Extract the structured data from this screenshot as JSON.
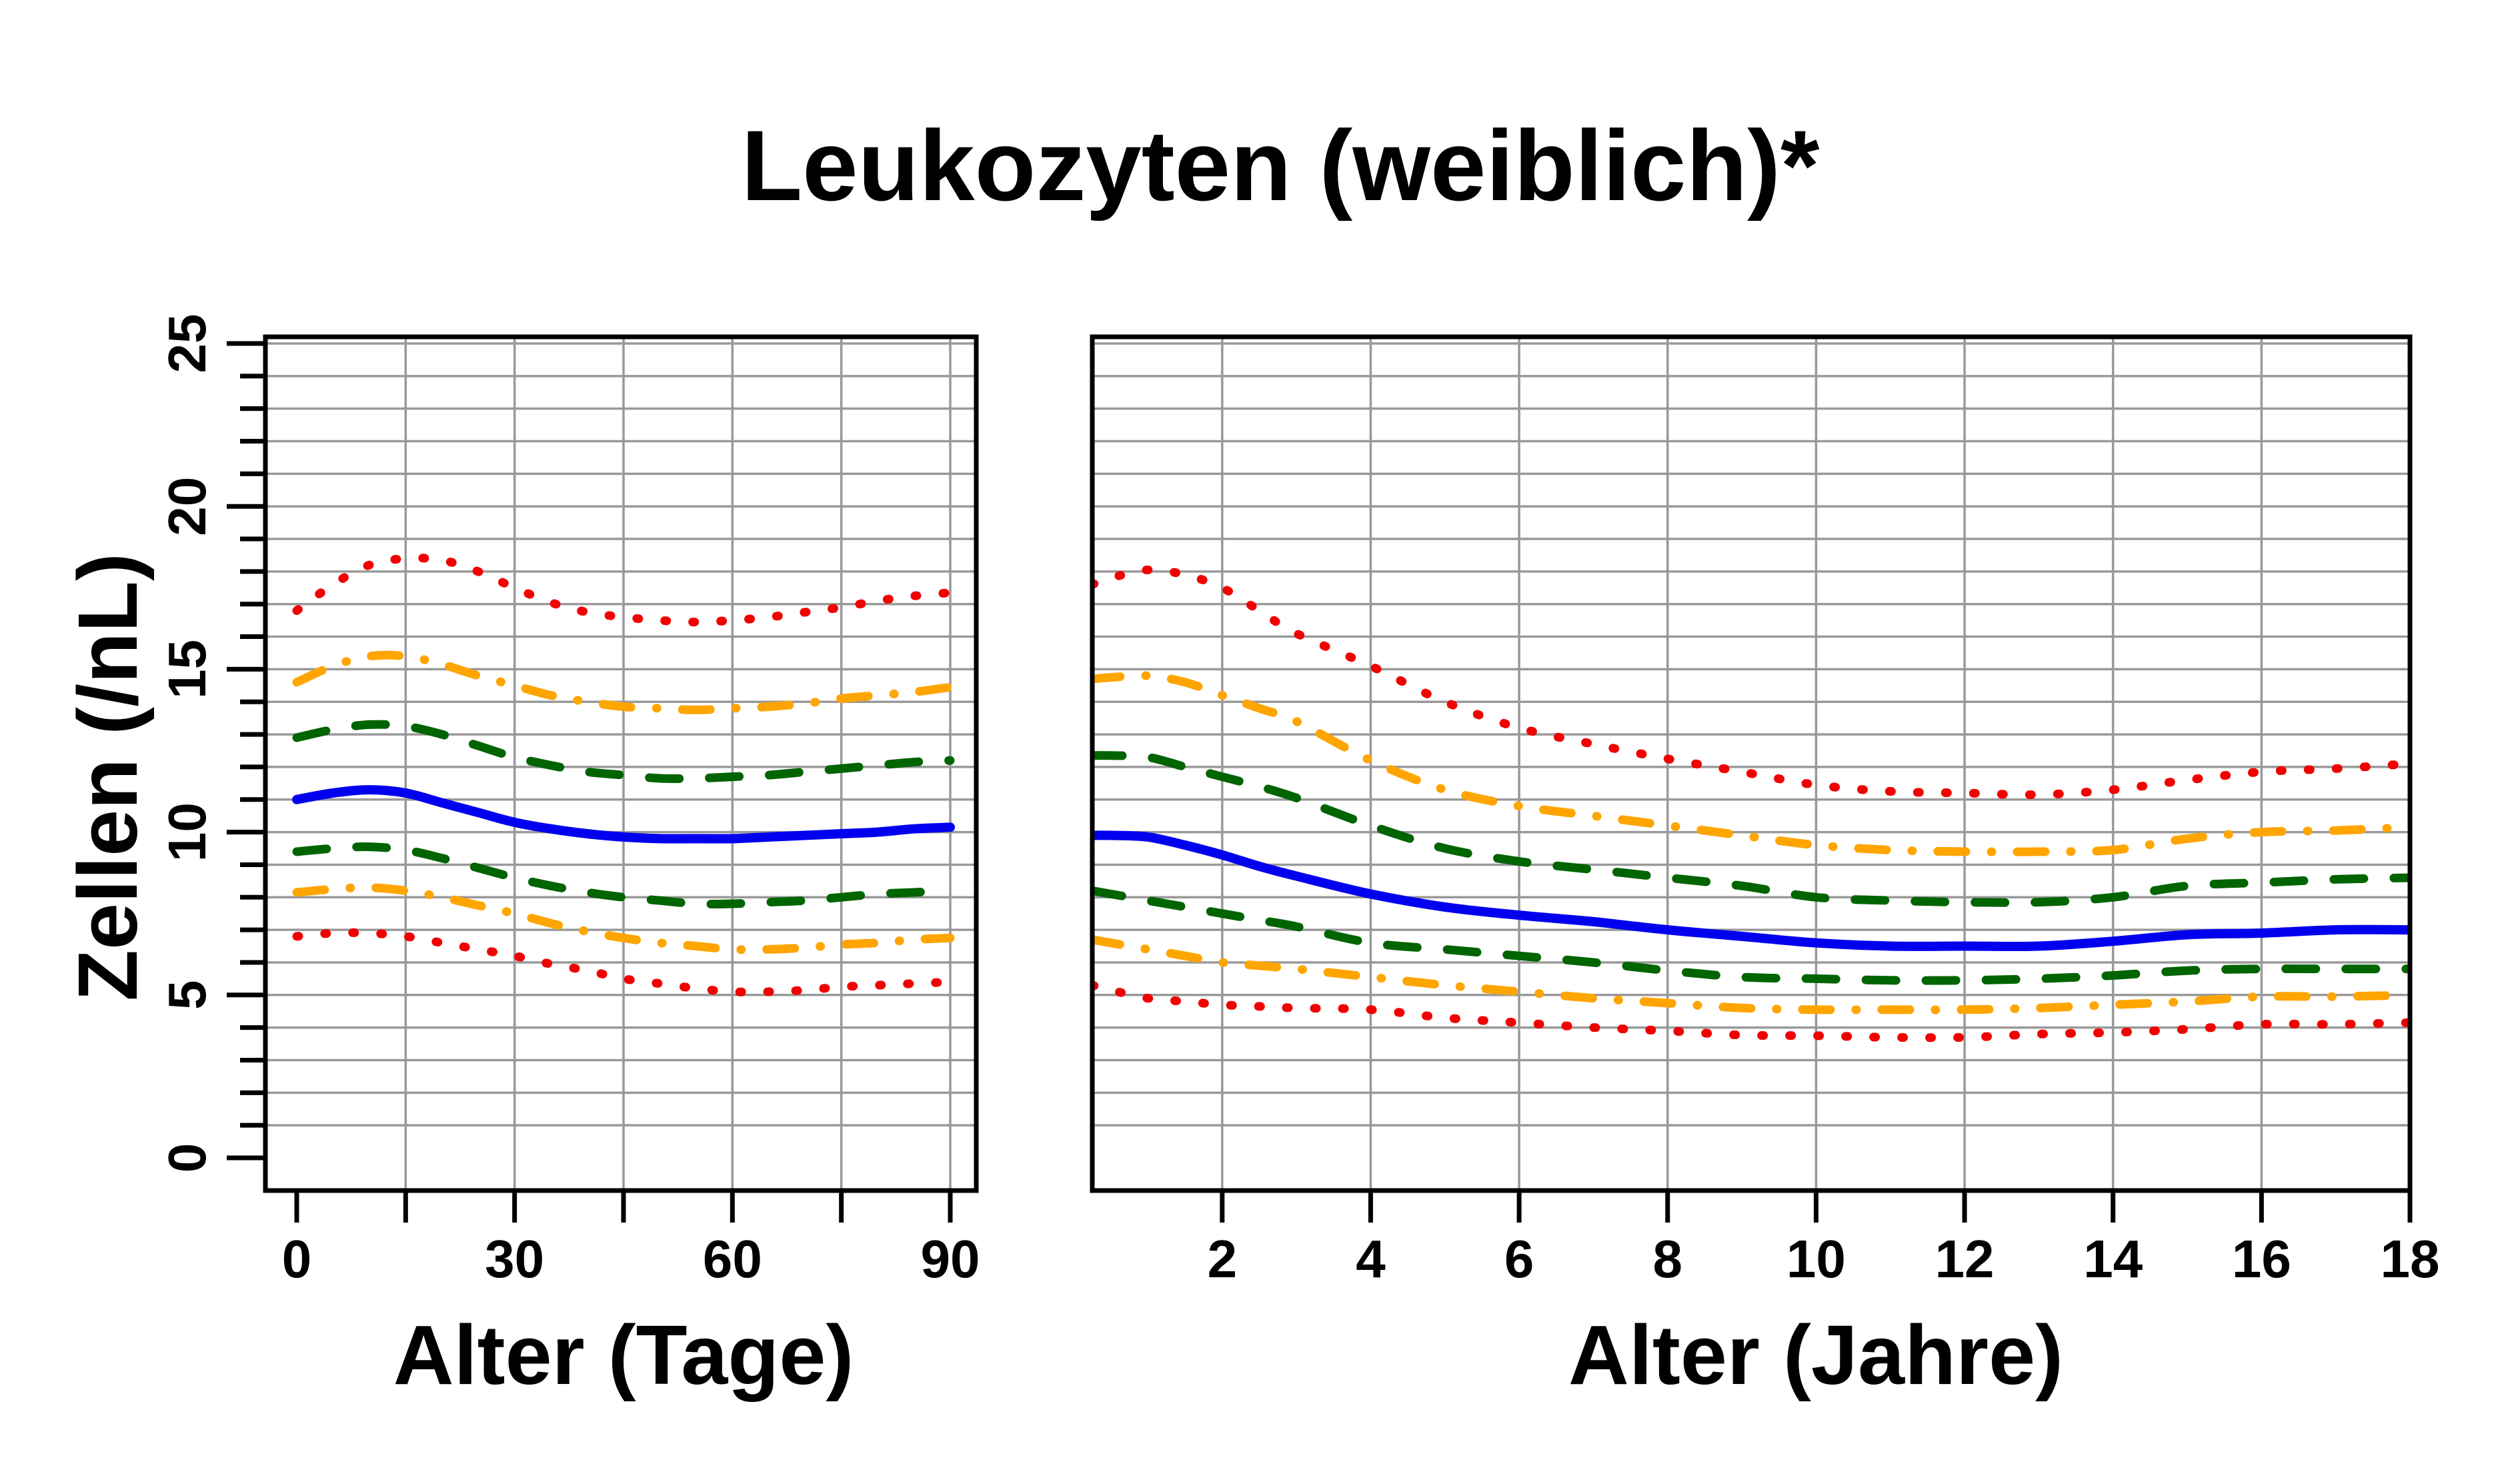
{
  "header": {
    "title": "Leukozyten (weiblich)*"
  },
  "axes": {
    "y_label": "Zellen (/nL)",
    "x_label_left": "Alter (Tage)",
    "x_label_right": "Alter (Jahre)",
    "y_ticks": [
      0,
      5,
      10,
      15,
      20,
      25
    ],
    "y_minor_step": 1,
    "grid_color": "#999999",
    "axis_color": "#000000"
  },
  "chart_data": [
    {
      "type": "line",
      "panel": "left",
      "title": "",
      "xlabel": "Alter (Tage)",
      "ylabel": "Zellen (/nL)",
      "xlim": [
        0,
        90
      ],
      "ylim": [
        0,
        25
      ],
      "grid": true,
      "x_ticks": [
        0,
        15,
        30,
        45,
        60,
        75,
        90
      ],
      "x_tick_labels": [
        "0",
        "",
        "30",
        "",
        "60",
        "",
        "90"
      ],
      "grid_x": [
        15,
        30,
        45,
        60,
        75,
        90
      ],
      "x": [
        0,
        5,
        10,
        15,
        20,
        25,
        30,
        35,
        40,
        45,
        50,
        55,
        60,
        65,
        70,
        75,
        80,
        85,
        90
      ],
      "series": [
        {
          "name": "red-upper",
          "color": "#f10000",
          "pattern": "dotted",
          "width": 13,
          "values": [
            16.8,
            17.6,
            18.2,
            18.4,
            18.35,
            18.0,
            17.5,
            17.05,
            16.75,
            16.6,
            16.5,
            16.45,
            16.5,
            16.6,
            16.75,
            16.9,
            17.1,
            17.25,
            17.35
          ]
        },
        {
          "name": "orange-upper",
          "color": "#ffa500",
          "pattern": "dashdot",
          "width": 13,
          "values": [
            14.6,
            15.1,
            15.4,
            15.4,
            15.15,
            14.8,
            14.5,
            14.2,
            14.0,
            13.85,
            13.8,
            13.75,
            13.8,
            13.85,
            13.95,
            14.1,
            14.2,
            14.3,
            14.45
          ]
        },
        {
          "name": "green-upper",
          "color": "#006400",
          "pattern": "longdash",
          "width": 13,
          "values": [
            12.9,
            13.15,
            13.3,
            13.25,
            13.0,
            12.65,
            12.3,
            12.05,
            11.85,
            11.75,
            11.65,
            11.65,
            11.7,
            11.75,
            11.85,
            11.95,
            12.05,
            12.15,
            12.2
          ]
        },
        {
          "name": "blue-median",
          "color": "#0000ee",
          "pattern": "solid",
          "width": 14,
          "values": [
            11.0,
            11.2,
            11.3,
            11.2,
            10.9,
            10.6,
            10.3,
            10.1,
            9.95,
            9.85,
            9.8,
            9.8,
            9.8,
            9.85,
            9.9,
            9.95,
            10.0,
            10.1,
            10.15
          ]
        },
        {
          "name": "green-lower",
          "color": "#006400",
          "pattern": "longdash",
          "width": 13,
          "values": [
            9.4,
            9.5,
            9.55,
            9.45,
            9.2,
            8.9,
            8.6,
            8.35,
            8.15,
            8.0,
            7.9,
            7.8,
            7.8,
            7.85,
            7.9,
            8.0,
            8.1,
            8.15,
            8.2
          ]
        },
        {
          "name": "orange-lower",
          "color": "#ffa500",
          "pattern": "dashdot",
          "width": 13,
          "values": [
            8.15,
            8.25,
            8.3,
            8.2,
            8.0,
            7.75,
            7.5,
            7.2,
            6.95,
            6.75,
            6.6,
            6.5,
            6.4,
            6.4,
            6.45,
            6.55,
            6.6,
            6.7,
            6.75
          ]
        },
        {
          "name": "red-lower",
          "color": "#f10000",
          "pattern": "dotted",
          "width": 13,
          "values": [
            6.8,
            6.9,
            6.9,
            6.8,
            6.6,
            6.4,
            6.2,
            5.95,
            5.75,
            5.5,
            5.35,
            5.2,
            5.1,
            5.1,
            5.15,
            5.25,
            5.3,
            5.35,
            5.4
          ]
        }
      ]
    },
    {
      "type": "line",
      "panel": "right",
      "title": "",
      "xlabel": "Alter (Jahre)",
      "ylabel": "Zellen (/nL)",
      "xlim": [
        0.25,
        18
      ],
      "ylim": [
        0,
        25
      ],
      "grid": true,
      "x_ticks": [
        2,
        4,
        6,
        8,
        10,
        12,
        14,
        16,
        18
      ],
      "x_tick_labels": [
        "2",
        "4",
        "6",
        "8",
        "10",
        "12",
        "14",
        "16",
        "18"
      ],
      "grid_x": [
        2,
        4,
        6,
        8,
        10,
        12,
        14,
        16,
        18
      ],
      "x": [
        0.25,
        0.5,
        1,
        1.5,
        2,
        2.5,
        3,
        4,
        5,
        6,
        7,
        8,
        9,
        10,
        11,
        12,
        13,
        14,
        15,
        16,
        17,
        18
      ],
      "series": [
        {
          "name": "red-upper",
          "color": "#f10000",
          "pattern": "dotted",
          "width": 13,
          "values": [
            17.6,
            17.8,
            18.05,
            17.9,
            17.5,
            16.8,
            16.1,
            15.1,
            14.0,
            13.2,
            12.7,
            12.25,
            11.85,
            11.45,
            11.25,
            11.2,
            11.15,
            11.3,
            11.6,
            11.85,
            11.95,
            12.1
          ]
        },
        {
          "name": "orange-upper",
          "color": "#ffa500",
          "pattern": "dashdot",
          "width": 13,
          "values": [
            14.7,
            14.75,
            14.8,
            14.6,
            14.2,
            13.8,
            13.4,
            12.2,
            11.3,
            10.8,
            10.5,
            10.2,
            9.9,
            9.6,
            9.45,
            9.4,
            9.4,
            9.45,
            9.8,
            10.0,
            10.05,
            10.15
          ]
        },
        {
          "name": "green-upper",
          "color": "#006400",
          "pattern": "longdash",
          "width": 13,
          "values": [
            12.35,
            12.35,
            12.3,
            12.0,
            11.7,
            11.4,
            11.05,
            10.2,
            9.5,
            9.1,
            8.85,
            8.6,
            8.35,
            8.0,
            7.9,
            7.85,
            7.85,
            8.0,
            8.35,
            8.45,
            8.55,
            8.6
          ]
        },
        {
          "name": "blue-median",
          "color": "#0000ee",
          "pattern": "solid",
          "width": 14,
          "values": [
            9.9,
            9.9,
            9.85,
            9.6,
            9.3,
            8.95,
            8.65,
            8.1,
            7.7,
            7.45,
            7.25,
            7.0,
            6.8,
            6.6,
            6.5,
            6.5,
            6.5,
            6.65,
            6.85,
            6.9,
            7.0,
            7.0
          ]
        },
        {
          "name": "green-lower",
          "color": "#006400",
          "pattern": "longdash",
          "width": 13,
          "values": [
            8.2,
            8.1,
            7.9,
            7.7,
            7.5,
            7.3,
            7.1,
            6.6,
            6.4,
            6.2,
            6.0,
            5.75,
            5.55,
            5.5,
            5.45,
            5.45,
            5.5,
            5.6,
            5.75,
            5.8,
            5.8,
            5.8
          ]
        },
        {
          "name": "orange-lower",
          "color": "#ffa500",
          "pattern": "dashdot",
          "width": 13,
          "values": [
            6.7,
            6.6,
            6.4,
            6.2,
            6.0,
            5.9,
            5.8,
            5.55,
            5.3,
            5.1,
            4.9,
            4.75,
            4.6,
            4.55,
            4.55,
            4.55,
            4.6,
            4.7,
            4.8,
            4.95,
            4.95,
            5.0
          ]
        },
        {
          "name": "red-lower",
          "color": "#f10000",
          "pattern": "dotted",
          "width": 13,
          "values": [
            5.3,
            5.15,
            4.9,
            4.8,
            4.7,
            4.65,
            4.6,
            4.55,
            4.3,
            4.15,
            4.0,
            3.9,
            3.77,
            3.75,
            3.7,
            3.7,
            3.8,
            3.85,
            3.95,
            4.1,
            4.1,
            4.15
          ]
        }
      ]
    }
  ]
}
